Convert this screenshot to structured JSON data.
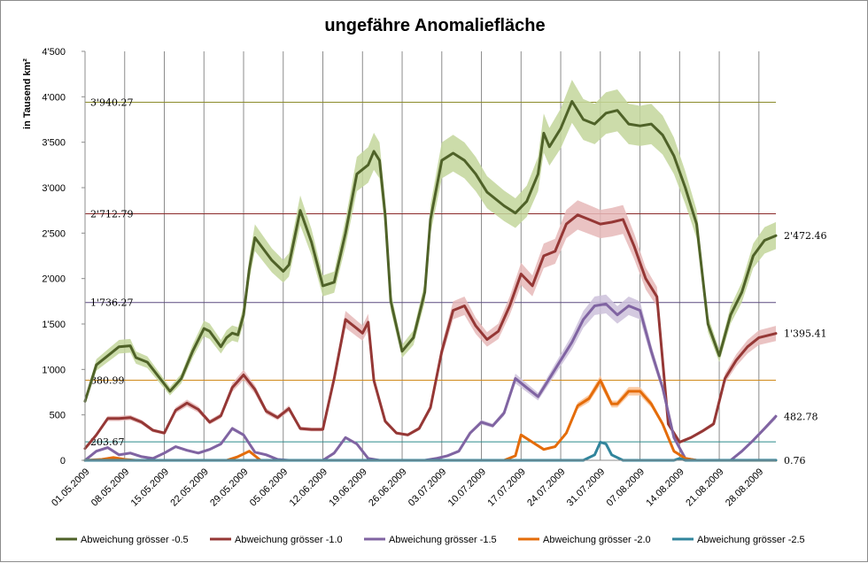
{
  "chart_data": {
    "type": "line",
    "title": "ungefähre Anomaliefläche",
    "ylabel": "in Tausend  km²",
    "xlabel": "",
    "ylim": [
      0,
      4500
    ],
    "yticks": [
      0,
      500,
      1000,
      1500,
      2000,
      2500,
      3000,
      3500,
      4000,
      4500
    ],
    "ytick_labels": [
      "0",
      "500",
      "1'000",
      "1'500",
      "2'000",
      "2'500",
      "3'000",
      "3'500",
      "4'000",
      "4'500"
    ],
    "x_start": "01.05.2009",
    "x_end": "31.08.2009",
    "xtick_labels": [
      "01.05.2009",
      "08.05.2009",
      "15.05.2009",
      "22.05.2009",
      "29.05.2009",
      "05.06.2009",
      "12.06.2009",
      "19.06.2009",
      "26.06.2009",
      "03.07.2009",
      "10.07.2009",
      "17.07.2009",
      "24.07.2009",
      "31.07.2009",
      "07.08.2009",
      "14.08.2009",
      "21.08.2009",
      "28.08.2009"
    ],
    "grid": "vertical lines at date ticks",
    "legend_position": "bottom",
    "reference_lines": [
      {
        "value": 3940.27,
        "label": "3'940.27",
        "color": "#8b8b2a"
      },
      {
        "value": 2712.79,
        "label": "2'712.79",
        "color": "#8b2a2a"
      },
      {
        "value": 1736.27,
        "label": "1'736.27",
        "color": "#5a4a80"
      },
      {
        "value": 880.99,
        "label": "880.99",
        "color": "#d08a1a"
      },
      {
        "value": 203.67,
        "label": "203.67",
        "color": "#2a8a8a"
      }
    ],
    "end_labels": [
      "2'472.46",
      "1'395.41",
      "482.78",
      "0.76"
    ],
    "series": [
      {
        "name": "Abweichung grösser -0.5",
        "color": "#4f6228",
        "band_color": "#c3d69b",
        "x": [
          "01.05.2009",
          "03.05.2009",
          "05.05.2009",
          "07.05.2009",
          "09.05.2009",
          "10.05.2009",
          "12.05.2009",
          "14.05.2009",
          "16.05.2009",
          "18.05.2009",
          "20.05.2009",
          "22.05.2009",
          "23.05.2009",
          "25.05.2009",
          "26.05.2009",
          "27.05.2009",
          "28.05.2009",
          "29.05.2009",
          "30.05.2009",
          "31.05.2009",
          "03.06.2009",
          "05.06.2009",
          "06.06.2009",
          "08.06.2009",
          "10.06.2009",
          "12.06.2009",
          "14.06.2009",
          "16.06.2009",
          "18.06.2009",
          "20.06.2009",
          "21.06.2009",
          "22.06.2009",
          "23.06.2009",
          "24.06.2009",
          "26.06.2009",
          "28.06.2009",
          "30.06.2009",
          "01.07.2009",
          "03.07.2009",
          "05.07.2009",
          "07.07.2009",
          "09.07.2009",
          "11.07.2009",
          "14.07.2009",
          "16.07.2009",
          "18.07.2009",
          "20.07.2009",
          "21.07.2009",
          "22.07.2009",
          "24.07.2009",
          "26.07.2009",
          "28.07.2009",
          "30.07.2009",
          "01.08.2009",
          "03.08.2009",
          "05.08.2009",
          "07.08.2009",
          "09.08.2009",
          "11.08.2009",
          "13.08.2009",
          "15.08.2009",
          "17.08.2009",
          "19.08.2009",
          "21.08.2009",
          "23.08.2009",
          "25.08.2009",
          "27.08.2009",
          "29.08.2009",
          "31.08.2009"
        ],
        "values": [
          650,
          1050,
          1150,
          1250,
          1260,
          1130,
          1080,
          920,
          760,
          900,
          1200,
          1450,
          1420,
          1250,
          1350,
          1400,
          1380,
          1600,
          2100,
          2450,
          2200,
          2080,
          2150,
          2750,
          2400,
          1920,
          1960,
          2500,
          3150,
          3250,
          3400,
          3300,
          2700,
          1750,
          1200,
          1350,
          1850,
          2650,
          3300,
          3380,
          3300,
          3150,
          2950,
          2800,
          2720,
          2850,
          3150,
          3600,
          3450,
          3650,
          3950,
          3750,
          3700,
          3820,
          3850,
          3700,
          3680,
          3700,
          3580,
          3350,
          3000,
          2600,
          1500,
          1150,
          1600,
          1850,
          2250,
          2420,
          2472.46
        ]
      },
      {
        "name": "Abweichung grösser -1.0",
        "color": "#953735",
        "band_color": "#e6b9b8",
        "x": [
          "01.05.2009",
          "03.05.2009",
          "05.05.2009",
          "07.05.2009",
          "09.05.2009",
          "11.05.2009",
          "13.05.2009",
          "15.05.2009",
          "17.05.2009",
          "19.05.2009",
          "21.05.2009",
          "23.05.2009",
          "25.05.2009",
          "27.05.2009",
          "29.05.2009",
          "31.05.2009",
          "02.06.2009",
          "04.06.2009",
          "06.06.2009",
          "08.06.2009",
          "10.06.2009",
          "12.06.2009",
          "14.06.2009",
          "16.06.2009",
          "18.06.2009",
          "19.06.2009",
          "20.06.2009",
          "21.06.2009",
          "23.06.2009",
          "25.06.2009",
          "27.06.2009",
          "29.06.2009",
          "01.07.2009",
          "03.07.2009",
          "05.07.2009",
          "07.07.2009",
          "09.07.2009",
          "11.07.2009",
          "13.07.2009",
          "15.07.2009",
          "17.07.2009",
          "19.07.2009",
          "21.07.2009",
          "23.07.2009",
          "25.07.2009",
          "27.07.2009",
          "29.07.2009",
          "31.07.2009",
          "02.08.2009",
          "04.08.2009",
          "06.08.2009",
          "08.08.2009",
          "10.08.2009",
          "12.08.2009",
          "14.08.2009",
          "16.08.2009",
          "18.08.2009",
          "20.08.2009",
          "22.08.2009",
          "24.08.2009",
          "26.08.2009",
          "28.08.2009",
          "31.08.2009"
        ],
        "values": [
          130,
          280,
          460,
          460,
          470,
          420,
          330,
          300,
          550,
          630,
          560,
          420,
          490,
          800,
          940,
          780,
          540,
          470,
          570,
          350,
          340,
          340,
          900,
          1550,
          1450,
          1400,
          1520,
          880,
          430,
          300,
          280,
          350,
          580,
          1200,
          1650,
          1700,
          1480,
          1330,
          1420,
          1700,
          2050,
          1920,
          2250,
          2300,
          2600,
          2700,
          2650,
          2600,
          2620,
          2650,
          2350,
          2000,
          1800,
          400,
          200,
          250,
          320,
          400,
          900,
          1100,
          1250,
          1350,
          1395.41
        ]
      },
      {
        "name": "Abweichung grösser -1.5",
        "color": "#8064a2",
        "band_color": "#ccc1da",
        "x": [
          "01.05.2009",
          "03.05.2009",
          "05.05.2009",
          "07.05.2009",
          "09.05.2009",
          "11.05.2009",
          "13.05.2009",
          "15.05.2009",
          "17.05.2009",
          "19.05.2009",
          "21.05.2009",
          "23.05.2009",
          "25.05.2009",
          "27.05.2009",
          "29.05.2009",
          "31.05.2009",
          "02.06.2009",
          "04.06.2009",
          "06.06.2009",
          "08.06.2009",
          "10.06.2009",
          "12.06.2009",
          "14.06.2009",
          "16.06.2009",
          "18.06.2009",
          "20.06.2009",
          "22.06.2009",
          "24.06.2009",
          "26.06.2009",
          "28.06.2009",
          "30.06.2009",
          "02.07.2009",
          "04.07.2009",
          "06.07.2009",
          "08.07.2009",
          "10.07.2009",
          "12.07.2009",
          "14.07.2009",
          "16.07.2009",
          "18.07.2009",
          "20.07.2009",
          "22.07.2009",
          "24.07.2009",
          "26.07.2009",
          "28.07.2009",
          "30.07.2009",
          "01.08.2009",
          "03.08.2009",
          "05.08.2009",
          "07.08.2009",
          "09.08.2009",
          "11.08.2009",
          "13.08.2009",
          "15.08.2009",
          "17.08.2009",
          "19.08.2009",
          "21.08.2009",
          "23.08.2009",
          "25.08.2009",
          "27.08.2009",
          "29.08.2009",
          "31.08.2009"
        ],
        "values": [
          0,
          100,
          140,
          60,
          80,
          40,
          20,
          80,
          150,
          110,
          80,
          120,
          180,
          350,
          280,
          90,
          60,
          10,
          0,
          0,
          0,
          0,
          80,
          250,
          180,
          20,
          0,
          0,
          0,
          0,
          0,
          20,
          50,
          100,
          300,
          420,
          380,
          520,
          900,
          800,
          700,
          900,
          1100,
          1300,
          1550,
          1700,
          1720,
          1600,
          1700,
          1650,
          1200,
          800,
          250,
          20,
          0,
          0,
          0,
          0,
          100,
          220,
          350,
          482.78
        ]
      },
      {
        "name": "Abweichung grösser -2.0",
        "color": "#e46c0a",
        "band_color": "#fac090",
        "x": [
          "01.05.2009",
          "04.05.2009",
          "06.05.2009",
          "08.05.2009",
          "10.05.2009",
          "26.05.2009",
          "28.05.2009",
          "30.05.2009",
          "01.06.2009",
          "14.07.2009",
          "16.07.2009",
          "17.07.2009",
          "19.07.2009",
          "21.07.2009",
          "23.07.2009",
          "25.07.2009",
          "27.07.2009",
          "29.07.2009",
          "31.07.2009",
          "02.08.2009",
          "03.08.2009",
          "05.08.2009",
          "07.08.2009",
          "09.08.2009",
          "11.08.2009",
          "13.08.2009",
          "15.08.2009",
          "17.08.2009",
          "31.08.2009"
        ],
        "values": [
          0,
          10,
          30,
          10,
          0,
          0,
          40,
          100,
          0,
          0,
          50,
          280,
          200,
          120,
          150,
          300,
          600,
          680,
          880,
          620,
          620,
          760,
          760,
          620,
          400,
          100,
          20,
          0,
          0
        ]
      },
      {
        "name": "Abweichung grösser -2.5",
        "color": "#31859c",
        "band_color": "#b7dee8",
        "x": [
          "01.05.2009",
          "28.07.2009",
          "30.07.2009",
          "31.07.2009",
          "01.08.2009",
          "02.08.2009",
          "04.08.2009",
          "13.08.2009",
          "14.08.2009",
          "15.08.2009",
          "31.08.2009"
        ],
        "values": [
          0,
          0,
          60,
          200,
          180,
          60,
          0,
          0,
          20,
          0,
          0.76
        ]
      }
    ]
  }
}
